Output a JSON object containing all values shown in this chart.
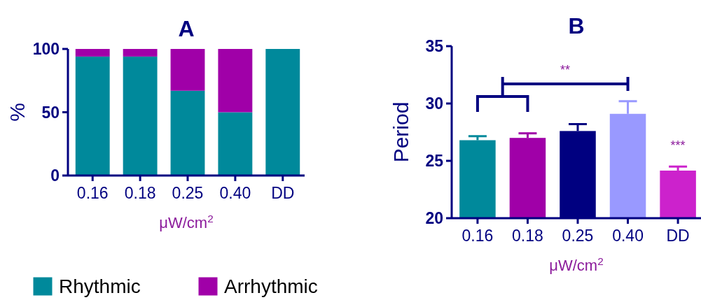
{
  "chart_data": [
    {
      "type": "bar",
      "title": "A",
      "xlabel": "μW/cm$^{2}$",
      "ylabel": "%",
      "categories": [
        "0.16",
        "0.18",
        "0.25",
        "0.40",
        "DD"
      ],
      "stacked": true,
      "ylim": [
        0,
        100
      ],
      "yticks": [
        0,
        50,
        100
      ],
      "legend": "bottom",
      "series": [
        {
          "name": "Rhythmic",
          "color": "#00899b",
          "values": [
            94,
            94,
            67,
            50,
            100
          ]
        },
        {
          "name": "Arrhythmic",
          "color": "#a000a8",
          "values": [
            6,
            6,
            33,
            50,
            0
          ]
        }
      ]
    },
    {
      "type": "bar",
      "title": "B",
      "xlabel": "μW/cm$^{2}$",
      "ylabel": "Period",
      "categories": [
        "0.16",
        "0.18",
        "0.25",
        "0.40",
        "DD"
      ],
      "values": [
        26.8,
        27.0,
        27.6,
        29.1,
        24.15
      ],
      "colors": [
        "#00899b",
        "#a000a8",
        "#000080",
        "#9999ff",
        "#cc22cc"
      ],
      "errors": [
        0.35,
        0.4,
        0.6,
        1.1,
        0.35
      ],
      "ylim": [
        20,
        35
      ],
      "yticks": [
        20,
        25,
        30,
        35
      ],
      "annotations": [
        "**",
        "***"
      ]
    }
  ]
}
